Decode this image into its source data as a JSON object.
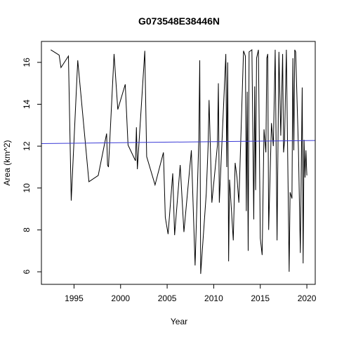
{
  "chart_data": {
    "type": "line",
    "title": "G073548E38446N",
    "xlabel": "Year",
    "ylabel": "Area (km^2)",
    "xlim": [
      1991.5,
      2020.9
    ],
    "ylim": [
      5.4,
      17.0
    ],
    "xticks": [
      1995,
      2000,
      2005,
      2010,
      2015,
      2020
    ],
    "yticks": [
      6,
      8,
      10,
      12,
      14,
      16
    ],
    "grid": false,
    "series": [
      {
        "color": "#000000",
        "x": [
          1992.5,
          1993.4,
          1993.6,
          1994.4,
          1994.7,
          1995.4,
          1996.6,
          1997.6,
          1998.5,
          1998.6,
          1998.7,
          1999.3,
          1999.7,
          2000.5,
          2000.8,
          2001.6,
          2001.7,
          2001.8,
          2002.6,
          2002.8,
          2003.7,
          2004.6,
          2004.8,
          2005.1,
          2005.6,
          2005.8,
          2006.4,
          2006.8,
          2007.6,
          2008.0,
          2008.4,
          2008.5,
          2008.6,
          2009.2,
          2009.4,
          2009.5,
          2009.8,
          2010.4,
          2010.5,
          2010.6,
          2011.3,
          2011.4,
          2011.5,
          2011.6,
          2011.7,
          2012.1,
          2012.3,
          2012.5,
          2012.7,
          2013.2,
          2013.4,
          2013.5,
          2013.6,
          2013.7,
          2013.8,
          2014.1,
          2014.3,
          2014.4,
          2014.5,
          2014.6,
          2014.8,
          2015.0,
          2015.2,
          2015.4,
          2015.6,
          2015.7,
          2015.8,
          2015.9,
          2016.2,
          2016.4,
          2016.6,
          2016.8,
          2017.0,
          2017.2,
          2017.4,
          2017.5,
          2017.6,
          2017.8,
          2018.1,
          2018.2,
          2018.4,
          2018.5,
          2018.6,
          2018.7,
          2018.8,
          2019.1,
          2019.3,
          2019.5,
          2019.6,
          2019.7,
          2019.8,
          2019.9,
          2020.0
        ],
        "y": [
          16.6,
          16.35,
          15.75,
          16.3,
          9.4,
          16.1,
          10.3,
          10.6,
          12.6,
          11.1,
          11.0,
          16.4,
          13.75,
          14.95,
          12.05,
          11.3,
          12.9,
          10.9,
          16.55,
          11.5,
          10.15,
          11.7,
          8.6,
          7.8,
          10.7,
          7.75,
          11.1,
          7.9,
          11.8,
          6.3,
          12.3,
          16.1,
          5.9,
          9.75,
          12.05,
          14.2,
          9.3,
          12.05,
          15.0,
          9.3,
          16.4,
          11.0,
          16.0,
          6.5,
          10.4,
          7.5,
          11.2,
          10.5,
          9.3,
          16.55,
          16.3,
          8.9,
          14.6,
          7.0,
          16.5,
          16.6,
          8.5,
          14.85,
          9.9,
          16.2,
          16.6,
          7.6,
          6.8,
          12.8,
          11.7,
          16.2,
          16.4,
          8.0,
          13.1,
          12.0,
          16.6,
          7.5,
          16.5,
          12.5,
          16.4,
          11.7,
          12.2,
          16.6,
          6.0,
          9.8,
          9.5,
          16.2,
          11.8,
          16.6,
          16.5,
          11.8,
          6.9,
          14.8,
          6.4,
          12.3,
          10.5,
          11.8,
          10.6
        ]
      },
      {
        "color": "#3b3bd6",
        "x": [
          1991.5,
          2020.9
        ],
        "y": [
          12.12,
          12.27
        ]
      }
    ]
  }
}
